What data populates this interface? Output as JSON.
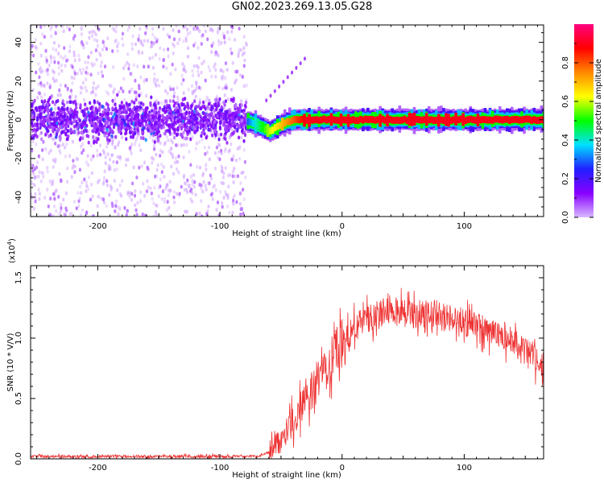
{
  "figure": {
    "title": "GN02.2023.269.13.05.G28"
  },
  "chart_data": [
    {
      "type": "heatmap",
      "xlabel": "Height of straight line (km)",
      "ylabel": "Frequency (Hz)",
      "xlim": [
        -255,
        165
      ],
      "ylim": [
        -50,
        49
      ],
      "xticks": [
        -200,
        -100,
        0,
        100
      ],
      "xtick_labels": [
        "-200",
        "-100",
        "0",
        "100"
      ],
      "yticks": [
        -40,
        -20,
        0,
        20,
        40
      ],
      "ytick_labels": [
        "-40",
        "-20",
        "0",
        "20",
        "40"
      ],
      "colorbar": {
        "label": "Normalized spectral amplitude",
        "range": [
          0,
          1
        ],
        "ticks": [
          0.0,
          0.2,
          0.4,
          0.6,
          0.8
        ],
        "tick_labels": [
          "0.0",
          "0.2",
          "0.4",
          "0.6",
          "0.8"
        ],
        "colormap": [
          "#d8b8ff",
          "#8800ff",
          "#2020ff",
          "#00e0ff",
          "#00ff00",
          "#ffff00",
          "#ff8800",
          "#ff0000",
          "#ff0080"
        ]
      },
      "noise_region_x": [
        -255,
        -78
      ],
      "signal_trace": {
        "x": [
          -78,
          -72,
          -66,
          -60,
          -55,
          -50,
          -45,
          -40,
          -35,
          -30,
          -20,
          -10,
          0,
          20,
          40,
          60,
          80,
          100,
          120,
          140,
          165
        ],
        "frequency": [
          -1,
          -2,
          -4,
          -6,
          -4,
          -2,
          -1,
          0,
          0,
          0,
          0,
          0,
          0,
          0,
          0,
          0,
          0,
          0,
          0,
          0,
          0
        ],
        "amplitude": [
          0.3,
          0.4,
          0.5,
          0.6,
          0.65,
          0.7,
          0.75,
          0.8,
          0.85,
          0.9,
          0.9,
          0.9,
          0.9,
          0.9,
          0.9,
          0.9,
          0.9,
          0.9,
          0.9,
          0.9,
          0.9
        ]
      }
    },
    {
      "type": "line",
      "xlabel": "Height of straight line (km)",
      "ylabel": "SNR (10 * V/V)",
      "scale_label": "(x10",
      "scale_exponent": "4",
      "scale_close": ")",
      "xlim": [
        -255,
        165
      ],
      "ylim": [
        0,
        1.6
      ],
      "xticks": [
        -200,
        -100,
        0,
        100
      ],
      "xtick_labels": [
        "-200",
        "-100",
        "0",
        "100"
      ],
      "yticks": [
        0.0,
        0.5,
        1.0,
        1.5
      ],
      "ytick_labels": [
        "0.0",
        "0.5",
        "1.0",
        "1.5"
      ],
      "line_color": "#ee3333",
      "series": [
        {
          "x": [
            -255,
            -200,
            -150,
            -100,
            -70,
            -60,
            -55,
            -50,
            -45,
            -40,
            -35,
            -30,
            -25,
            -20,
            -15,
            -10,
            -5,
            0,
            5,
            10,
            15,
            20,
            25,
            30,
            35,
            40,
            45,
            50,
            55,
            60,
            65,
            70,
            75,
            80,
            85,
            90,
            95,
            100,
            105,
            110,
            115,
            120,
            125,
            130,
            135,
            140,
            145,
            150,
            155,
            160,
            165
          ],
          "values": [
            0.02,
            0.02,
            0.02,
            0.02,
            0.02,
            0.05,
            0.1,
            0.16,
            0.24,
            0.32,
            0.4,
            0.48,
            0.56,
            0.64,
            0.72,
            0.8,
            0.88,
            0.95,
            1.02,
            1.08,
            1.12,
            1.16,
            1.18,
            1.2,
            1.22,
            1.23,
            1.22,
            1.2,
            1.19,
            1.2,
            1.21,
            1.2,
            1.2,
            1.19,
            1.18,
            1.16,
            1.15,
            1.13,
            1.12,
            1.1,
            1.08,
            1.06,
            1.04,
            1.02,
            0.99,
            0.96,
            0.92,
            0.88,
            0.84,
            0.8,
            0.78
          ]
        }
      ]
    }
  ]
}
